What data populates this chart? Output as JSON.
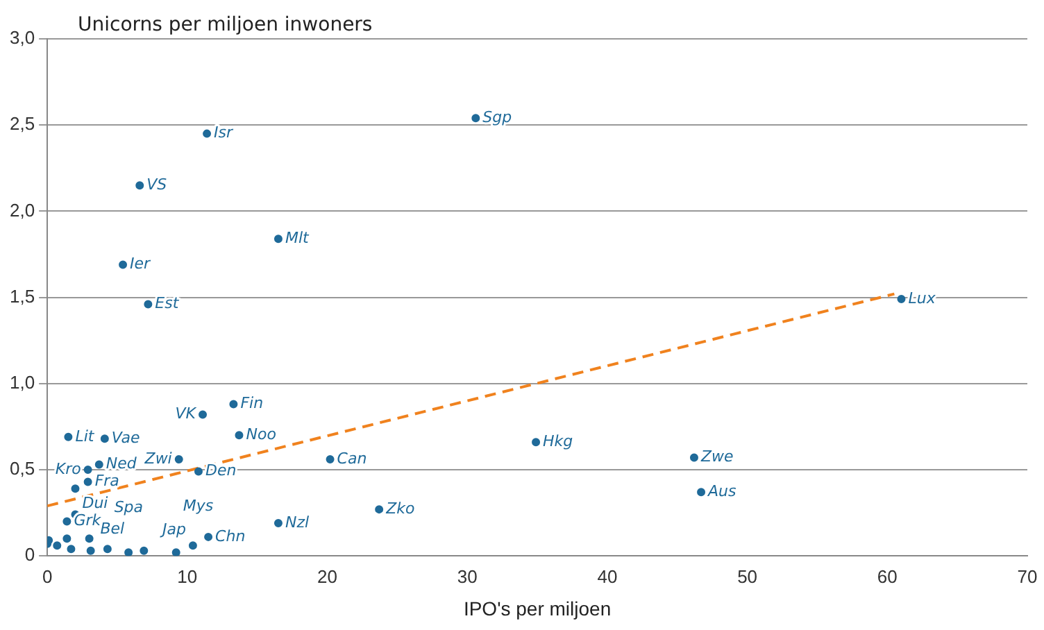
{
  "chart_data": {
    "type": "scatter",
    "ylabel": "Unicorns per miljoen inwoners",
    "xlabel": "IPO's per miljoen",
    "xlim": [
      0,
      70
    ],
    "xticks": [
      0,
      10,
      20,
      30,
      40,
      50,
      60,
      70
    ],
    "ylim": [
      0,
      3
    ],
    "yticks": [
      0,
      {
        "value": 0.5,
        "label": "0,5"
      },
      {
        "value": 1,
        "label": "1,0"
      },
      {
        "value": 1.5,
        "label": "1,5"
      },
      {
        "value": 2,
        "label": "2,0"
      },
      {
        "value": 2.5,
        "label": "2,5"
      },
      {
        "value": 3,
        "label": "3,0"
      }
    ],
    "grid": "y",
    "marker": "circle",
    "series": [
      {
        "type": "scatter",
        "color": "#1f6a99",
        "x": [
          30.6,
          11.4,
          6.6,
          16.5,
          5.4,
          7.2,
          61.0,
          13.3,
          11.1,
          13.7,
          1.5,
          4.1,
          34.9,
          46.2,
          46.7,
          20.2,
          23.7,
          16.5,
          9.4,
          10.8,
          3.7,
          2.9,
          2.9,
          2.0,
          2.0,
          1.9,
          1.4,
          11.5,
          10.4,
          9.2,
          3.0,
          0.0,
          0.1,
          0.7,
          1.4,
          1.7,
          3.1,
          4.3,
          5.8,
          6.9
        ],
        "values": [
          2.54,
          2.45,
          2.15,
          1.84,
          1.69,
          1.46,
          1.49,
          0.88,
          0.82,
          0.7,
          0.69,
          0.68,
          0.66,
          0.57,
          0.37,
          0.56,
          0.27,
          0.19,
          0.56,
          0.49,
          0.53,
          0.5,
          0.43,
          0.39,
          0.24,
          null,
          0.2,
          0.11,
          0.06,
          0.02,
          0.1,
          0.07,
          0.09,
          0.06,
          0.1,
          0.04,
          0.03,
          0.04,
          0.02,
          0.03
        ],
        "value_labels": [
          "Sgp",
          "Isr",
          "VS",
          "Mlt",
          "Ier",
          "Est",
          "Lux",
          "Fin",
          "VK",
          "Noo",
          "Lit",
          "Vae",
          "Hkg",
          "Zwe",
          "Aus",
          "Can",
          "Zko",
          "Nzl",
          "Zwi",
          "Den",
          "Ned",
          "Kro",
          "Fra",
          "Dui",
          "Bel",
          null,
          "Grk",
          "Chn",
          "Jap",
          "Mys",
          "Spa",
          null,
          null,
          null,
          null,
          null,
          null,
          null,
          null,
          null
        ]
      },
      {
        "type": "line",
        "color": "#f0821e",
        "line_style": "dashed",
        "marker": "none",
        "x": [
          0,
          60.5
        ],
        "values": [
          0.29,
          1.52
        ]
      }
    ]
  }
}
